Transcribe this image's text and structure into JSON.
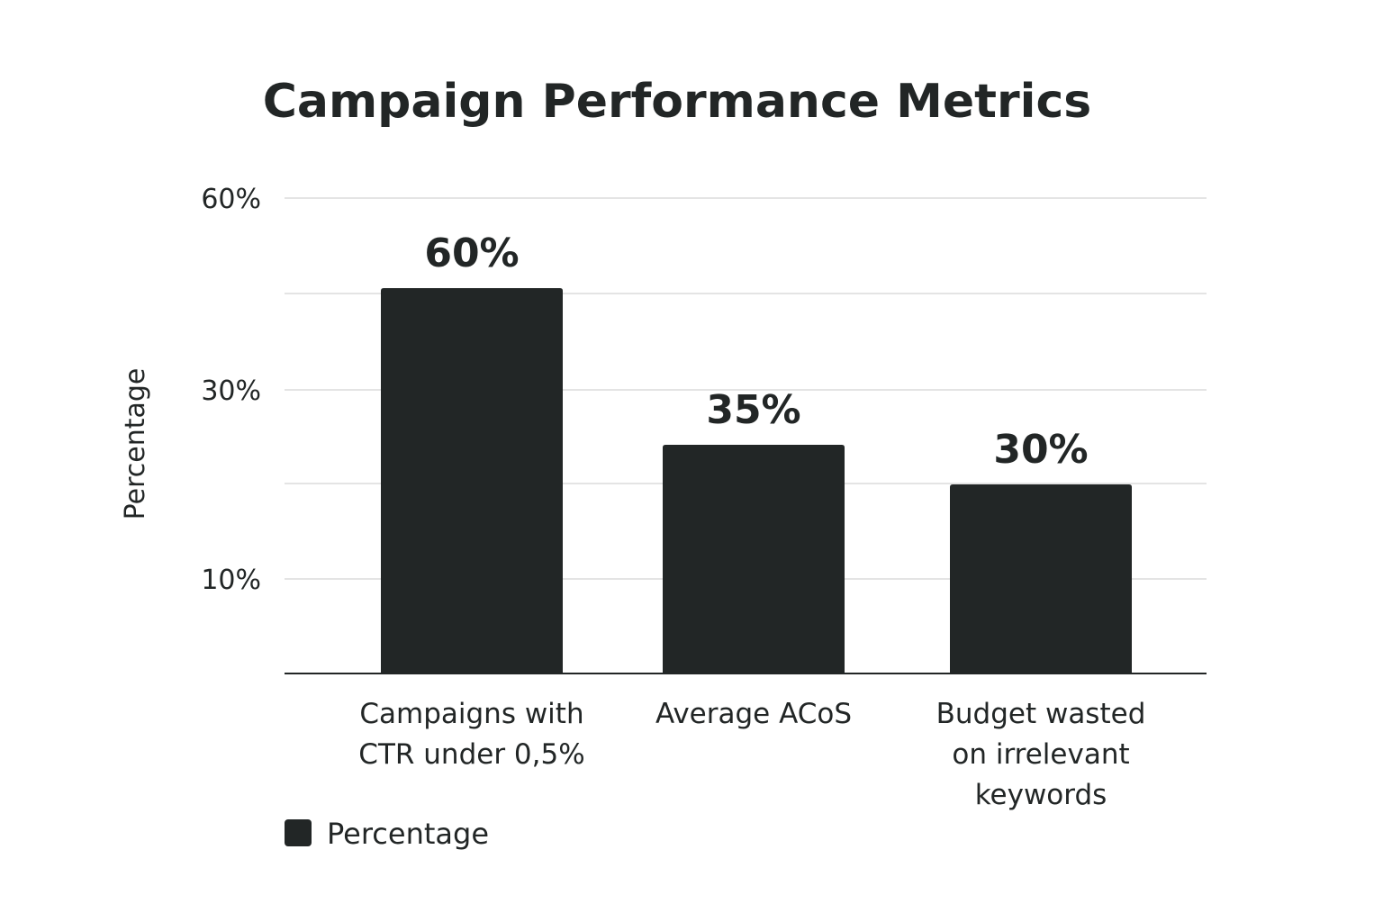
{
  "chart_data": {
    "type": "bar",
    "title": "Campaign Performance Metrics",
    "xlabel": "",
    "ylabel": "Percentage",
    "categories": [
      [
        "Campaigns with",
        "CTR under 0,5%"
      ],
      [
        "Average ACoS"
      ],
      [
        "Budget wasted",
        "on irrelevant",
        "keywords"
      ]
    ],
    "series": [
      {
        "name": "Percentage",
        "values": [
          60,
          35,
          30
        ],
        "labels": [
          "60%",
          "35%",
          "30%"
        ],
        "color": "#222626"
      }
    ],
    "y_ticks": [
      {
        "label": "10%",
        "value": 10
      },
      {
        "label": "30%",
        "value": 30
      },
      {
        "label": "60%",
        "value": 60
      }
    ],
    "ylim": [
      0,
      75
    ],
    "grid": true,
    "legend": {
      "position": "bottom-left",
      "label": "Percentage"
    }
  }
}
